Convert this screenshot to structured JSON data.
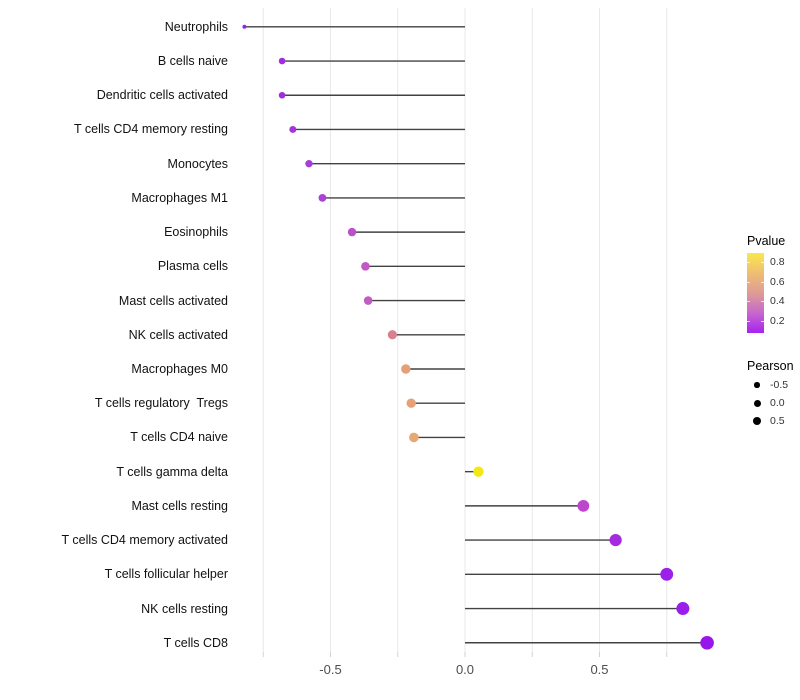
{
  "chart_data": {
    "type": "scatter",
    "variant": "horizontal-lollipop",
    "title": "",
    "xlabel": "",
    "ylabel": "",
    "background": "#ffffff",
    "gridline_color": "#e8e8e8",
    "axis_tick_color": "#d2d2d2",
    "stem_color": "#424242",
    "xlim": [
      -0.9,
      1.0
    ],
    "categories": [
      "Neutrophils",
      "B cells naive",
      "Dendritic cells activated",
      "T cells CD4 memory resting",
      "Monocytes",
      "Macrophages M1",
      "Eosinophils",
      "Plasma cells",
      "Mast cells activated",
      "NK cells activated",
      "Macrophages M0",
      "T cells regulatory  Tregs",
      "T cells CD4 naive",
      "T cells gamma delta",
      "Mast cells resting",
      "T cells CD4 memory activated",
      "T cells follicular helper",
      "NK cells resting",
      "T cells CD8"
    ],
    "points": [
      {
        "label": "Neutrophils",
        "pearson": -0.82,
        "dot_color": "#9327e4",
        "radius": 2.0
      },
      {
        "label": "B cells naive",
        "pearson": -0.68,
        "dot_color": "#a02be2",
        "radius": 3.3
      },
      {
        "label": "Dendritic cells activated",
        "pearson": -0.68,
        "dot_color": "#a12ce1",
        "radius": 3.3
      },
      {
        "label": "T cells CD4 memory resting",
        "pearson": -0.64,
        "dot_color": "#a435de",
        "radius": 3.5
      },
      {
        "label": "Monocytes",
        "pearson": -0.58,
        "dot_color": "#a93cd9",
        "radius": 3.7
      },
      {
        "label": "Macrophages M1",
        "pearson": -0.53,
        "dot_color": "#ac42d6",
        "radius": 3.9
      },
      {
        "label": "Eosinophils",
        "pearson": -0.42,
        "dot_color": "#bd4fcb",
        "radius": 4.2
      },
      {
        "label": "Plasma cells",
        "pearson": -0.37,
        "dot_color": "#c158c4",
        "radius": 4.3
      },
      {
        "label": "Mast cells activated",
        "pearson": -0.36,
        "dot_color": "#c15ac3",
        "radius": 4.3
      },
      {
        "label": "NK cells activated",
        "pearson": -0.27,
        "dot_color": "#d9808f",
        "radius": 4.6
      },
      {
        "label": "Macrophages M0",
        "pearson": -0.22,
        "dot_color": "#e5a175",
        "radius": 4.7
      },
      {
        "label": "T cells regulatory  Tregs",
        "pearson": -0.2,
        "dot_color": "#e6a276",
        "radius": 4.7
      },
      {
        "label": "T cells CD4 naive",
        "pearson": -0.19,
        "dot_color": "#e8a873",
        "radius": 4.8
      },
      {
        "label": "T cells gamma delta",
        "pearson": 0.05,
        "dot_color": "#f2e813",
        "radius": 5.2
      },
      {
        "label": "Mast cells resting",
        "pearson": 0.44,
        "dot_color": "#bd46cd",
        "radius": 5.9
      },
      {
        "label": "T cells CD4 memory activated",
        "pearson": 0.56,
        "dot_color": "#a52be0",
        "radius": 6.1
      },
      {
        "label": "T cells follicular helper",
        "pearson": 0.75,
        "dot_color": "#9c20e7",
        "radius": 6.4
      },
      {
        "label": "NK cells resting",
        "pearson": 0.81,
        "dot_color": "#9a1de9",
        "radius": 6.5
      },
      {
        "label": "T cells CD8",
        "pearson": 0.9,
        "dot_color": "#9916eb",
        "radius": 6.8
      }
    ],
    "x_axis": {
      "ticks": [
        {
          "value": -0.5,
          "label": "-0.5"
        },
        {
          "value": 0.0,
          "label": "0.0"
        },
        {
          "value": 0.5,
          "label": "0.5"
        }
      ],
      "gridline_values": [
        -0.75,
        -0.5,
        -0.25,
        0.0,
        0.25,
        0.5,
        0.75
      ]
    },
    "legends": {
      "pvalue": {
        "title": "Pvalue",
        "tick_labels": [
          "0.8",
          "0.6",
          "0.4",
          "0.2"
        ],
        "gradient_stops": [
          "#fbe74a",
          "#eebe72",
          "#de9c95",
          "#c767ce",
          "#a822f0"
        ]
      },
      "pearson": {
        "title": "Pearson",
        "items": [
          {
            "label": "-0.5",
            "radius": 2.7
          },
          {
            "label": "0.0",
            "radius": 3.5
          },
          {
            "label": "0.5",
            "radius": 4.2
          }
        ],
        "dot_color": "#000000"
      }
    }
  }
}
